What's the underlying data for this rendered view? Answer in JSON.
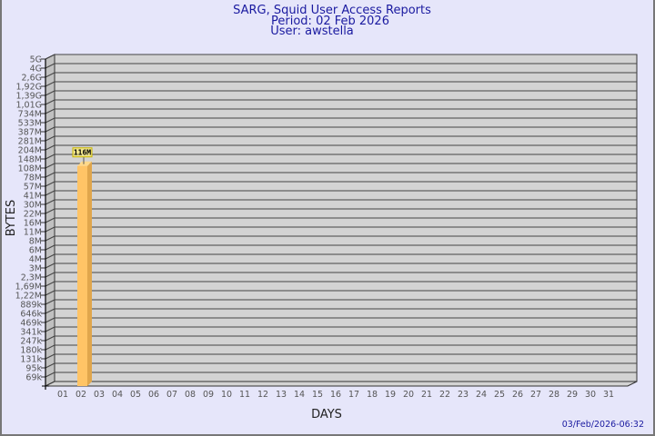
{
  "header": {
    "title": "SARG, Squid User Access Reports",
    "period": "Period: 02 Feb 2026",
    "user": "User: awstella"
  },
  "footer": {
    "timestamp": "03/Feb/2026-06:32"
  },
  "chart_data": {
    "type": "bar",
    "title": "SARG, Squid User Access Reports",
    "xlabel": "DAYS",
    "ylabel": "BYTES",
    "yscale": "log",
    "y_tick_labels": [
      "5G",
      "4G",
      "2,6G",
      "1,92G",
      "1,39G",
      "1,01G",
      "734M",
      "533M",
      "387M",
      "281M",
      "204M",
      "148M",
      "108M",
      "78M",
      "57M",
      "41M",
      "30M",
      "22M",
      "16M",
      "11M",
      "8M",
      "6M",
      "4M",
      "3M",
      "2,3M",
      "1,69M",
      "1,22M",
      "889k",
      "646k",
      "469k",
      "341k",
      "247k",
      "180k",
      "131k",
      "95k",
      "69k"
    ],
    "y_tick_values": [
      5000000000.0,
      4000000000.0,
      2600000000.0,
      1920000000.0,
      1390000000.0,
      1010000000.0,
      734000000.0,
      533000000.0,
      387000000.0,
      281000000.0,
      204000000.0,
      148000000.0,
      108000000.0,
      78000000.0,
      57000000.0,
      41000000.0,
      30000000.0,
      22000000.0,
      16000000.0,
      11000000.0,
      8000000.0,
      6000000.0,
      4000000.0,
      3000000.0,
      2300000.0,
      1690000.0,
      1220000.0,
      889000,
      646000,
      469000,
      341000,
      247000,
      180000,
      131000,
      95000,
      69000
    ],
    "categories": [
      "01",
      "02",
      "03",
      "04",
      "05",
      "06",
      "07",
      "08",
      "09",
      "10",
      "11",
      "12",
      "13",
      "14",
      "15",
      "16",
      "17",
      "18",
      "19",
      "20",
      "21",
      "22",
      "23",
      "24",
      "25",
      "26",
      "27",
      "28",
      "29",
      "30",
      "31"
    ],
    "bars": [
      {
        "category": "02",
        "value": 116000000,
        "label": "116M"
      }
    ],
    "grid": true,
    "colors": {
      "background": "#e6e6fa",
      "wall": "#d3d3d3",
      "side_wall": "#c0c0c0",
      "bar": "#ffc466",
      "bar_side": "#e0a64c",
      "label_box": "#f0e68c"
    }
  }
}
